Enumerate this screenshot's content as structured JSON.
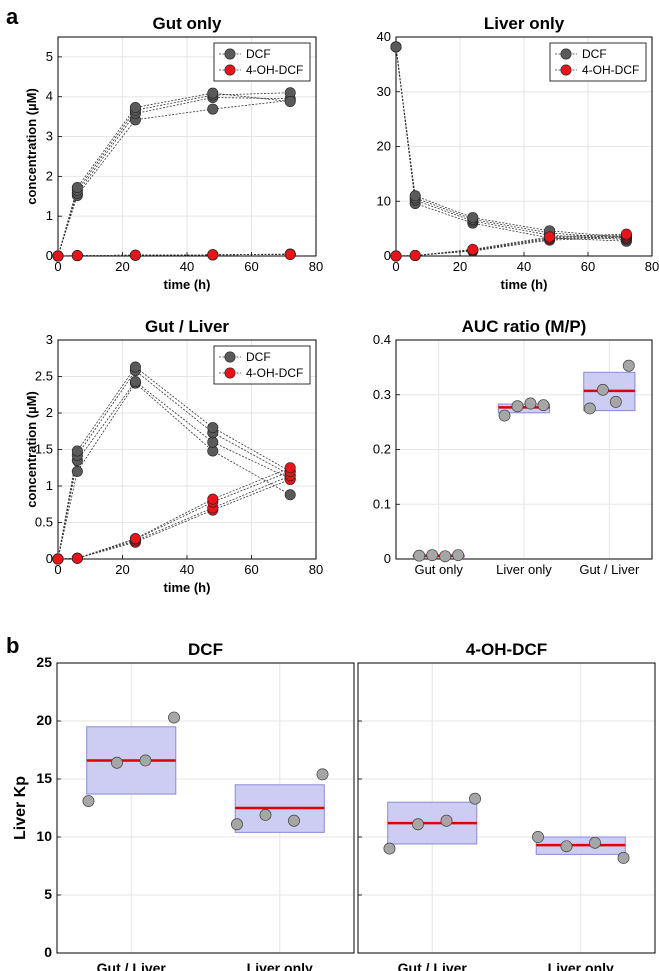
{
  "panel_labels": {
    "a": "a",
    "b": "b"
  },
  "colors": {
    "dcf_marker": "#5a5a5a",
    "oh_marker": "#e8141a",
    "box_fill": "#c8c8f2",
    "box_edge": "#8a8ad8",
    "median_line": "#e00000",
    "point_fill": "#a6a6a6",
    "grid": "#e6e6e6"
  },
  "chart_data": [
    {
      "id": "gut_only",
      "type": "line",
      "title": "Gut only",
      "xlabel": "time (h)",
      "ylabel": "concentration (µM)",
      "xlim": [
        0,
        80
      ],
      "ylim": [
        0,
        5.5
      ],
      "xticks": [
        0,
        20,
        40,
        60,
        80
      ],
      "xtick_labels": [
        "0",
        "20",
        "40",
        "60",
        "80"
      ],
      "yticks": [
        0,
        1,
        2,
        3,
        4,
        5
      ],
      "ytick_labels": [
        "0",
        "1",
        "2",
        "3",
        "4",
        "5"
      ],
      "grid": true,
      "legend": "top-right",
      "x": [
        0,
        6,
        24,
        48,
        72
      ],
      "series": [
        {
          "name": "DCF",
          "replicates": [
            [
              0,
              1.52,
              3.42,
              3.69,
              3.91
            ],
            [
              0,
              1.58,
              3.58,
              3.98,
              3.95
            ],
            [
              0,
              1.65,
              3.66,
              4.04,
              4.1
            ],
            [
              0,
              1.72,
              3.73,
              4.09,
              3.88
            ]
          ]
        },
        {
          "name": "4-OH-DCF",
          "replicates": [
            [
              0,
              0.01,
              0.02,
              0.03,
              0.04
            ],
            [
              0,
              0.01,
              0.02,
              0.03,
              0.05
            ],
            [
              0,
              0.01,
              0.02,
              0.03,
              0.04
            ],
            [
              0,
              0.01,
              0.02,
              0.03,
              0.04
            ]
          ]
        }
      ]
    },
    {
      "id": "liver_only",
      "type": "line",
      "title": "Liver only",
      "xlabel": "time (h)",
      "ylabel": "",
      "xlim": [
        0,
        80
      ],
      "ylim": [
        0,
        40
      ],
      "xticks": [
        0,
        20,
        40,
        60,
        80
      ],
      "xtick_labels": [
        "0",
        "20",
        "40",
        "60",
        "80"
      ],
      "yticks": [
        0,
        10,
        20,
        30,
        40
      ],
      "ytick_labels": [
        "0",
        "10",
        "20",
        "30",
        "40"
      ],
      "grid": true,
      "legend": "top-right",
      "x": [
        0,
        6,
        24,
        48,
        72
      ],
      "series": [
        {
          "name": "DCF",
          "replicates": [
            [
              38.2,
              9.6,
              6.0,
              3.3,
              2.7
            ],
            [
              38.2,
              10.2,
              6.4,
              3.8,
              3.0
            ],
            [
              38.2,
              10.6,
              6.7,
              4.2,
              3.2
            ],
            [
              38.2,
              11.0,
              7.0,
              4.6,
              3.4
            ]
          ]
        },
        {
          "name": "4-OH-DCF",
          "replicates": [
            [
              0,
              0.1,
              0.9,
              2.9,
              3.4
            ],
            [
              0,
              0.1,
              1.0,
              3.1,
              3.6
            ],
            [
              0,
              0.1,
              1.1,
              3.3,
              3.8
            ],
            [
              0,
              0.1,
              1.2,
              3.5,
              4.0
            ]
          ]
        }
      ]
    },
    {
      "id": "gut_liver",
      "type": "line",
      "title": "Gut / Liver",
      "xlabel": "time (h)",
      "ylabel": "concentration (µM)",
      "xlim": [
        0,
        80
      ],
      "ylim": [
        0,
        3
      ],
      "xticks": [
        0,
        20,
        40,
        60,
        80
      ],
      "xtick_labels": [
        "0",
        "20",
        "40",
        "60",
        "80"
      ],
      "yticks": [
        0,
        0.5,
        1,
        1.5,
        2,
        2.5,
        3
      ],
      "ytick_labels": [
        "0",
        "0.5",
        "1",
        "1.5",
        "2",
        "2.5",
        "3"
      ],
      "grid": true,
      "legend": "top-right",
      "x": [
        0,
        6,
        24,
        48,
        72
      ],
      "series": [
        {
          "name": "DCF",
          "replicates": [
            [
              0,
              1.2,
              2.41,
              1.48,
              0.88
            ],
            [
              0,
              1.35,
              2.43,
              1.6,
              1.1
            ],
            [
              0,
              1.42,
              2.58,
              1.73,
              1.15
            ],
            [
              0,
              1.48,
              2.63,
              1.8,
              1.2
            ]
          ]
        },
        {
          "name": "4-OH-DCF",
          "replicates": [
            [
              0,
              0.01,
              0.23,
              0.67,
              1.09
            ],
            [
              0,
              0.01,
              0.25,
              0.7,
              1.14
            ],
            [
              0,
              0.01,
              0.27,
              0.78,
              1.2
            ],
            [
              0,
              0.01,
              0.28,
              0.82,
              1.25
            ]
          ]
        }
      ]
    },
    {
      "id": "auc_ratio",
      "type": "scatter",
      "title": "AUC ratio (M/P)",
      "xlabel": "",
      "ylabel": "",
      "ylim": [
        0,
        0.4
      ],
      "yticks": [
        0,
        0.1,
        0.2,
        0.3,
        0.4
      ],
      "ytick_labels": [
        "0",
        "0.1",
        "0.2",
        "0.3",
        "0.4"
      ],
      "grid": true,
      "categories": [
        "Gut only",
        "Liver only",
        "Gut / Liver"
      ],
      "groups": [
        {
          "category": "Gut only",
          "points": [
            0.006,
            0.007,
            0.005,
            0.007
          ],
          "median": 0.006,
          "q1": 0.005,
          "q3": 0.007
        },
        {
          "category": "Liver only",
          "points": [
            0.262,
            0.279,
            0.284,
            0.281
          ],
          "median": 0.277,
          "q1": 0.267,
          "q3": 0.283
        },
        {
          "category": "Gut / Liver",
          "points": [
            0.275,
            0.309,
            0.287,
            0.353
          ],
          "median": 0.307,
          "q1": 0.271,
          "q3": 0.341
        }
      ]
    },
    {
      "id": "kp_dcf",
      "type": "scatter",
      "title": "DCF",
      "xlabel": "",
      "ylabel": "Liver Kp",
      "ylim": [
        0,
        25
      ],
      "yticks": [
        0,
        5,
        10,
        15,
        20,
        25
      ],
      "ytick_labels": [
        "0",
        "5",
        "10",
        "15",
        "20",
        "25"
      ],
      "grid": true,
      "categories": [
        "Gut / Liver",
        "Liver only"
      ],
      "groups": [
        {
          "category": "Gut / Liver",
          "points": [
            13.1,
            16.4,
            16.6,
            20.3
          ],
          "median": 16.6,
          "q1": 13.7,
          "q3": 19.5
        },
        {
          "category": "Liver only",
          "points": [
            11.1,
            11.9,
            11.4,
            15.4
          ],
          "median": 12.5,
          "q1": 10.4,
          "q3": 14.5
        }
      ]
    },
    {
      "id": "kp_oh",
      "type": "scatter",
      "title": "4-OH-DCF",
      "xlabel": "",
      "ylabel": "",
      "ylim": [
        0,
        25
      ],
      "yticks": [
        0,
        5,
        10,
        15,
        20,
        25
      ],
      "grid": true,
      "categories": [
        "Gut / Liver",
        "Liver only"
      ],
      "groups": [
        {
          "category": "Gut / Liver",
          "points": [
            9.0,
            11.1,
            11.4,
            13.3
          ],
          "median": 11.2,
          "q1": 9.4,
          "q3": 13.0
        },
        {
          "category": "Liver only",
          "points": [
            10.0,
            9.2,
            9.5,
            8.2
          ],
          "median": 9.3,
          "q1": 8.5,
          "q3": 10.0
        }
      ]
    }
  ]
}
